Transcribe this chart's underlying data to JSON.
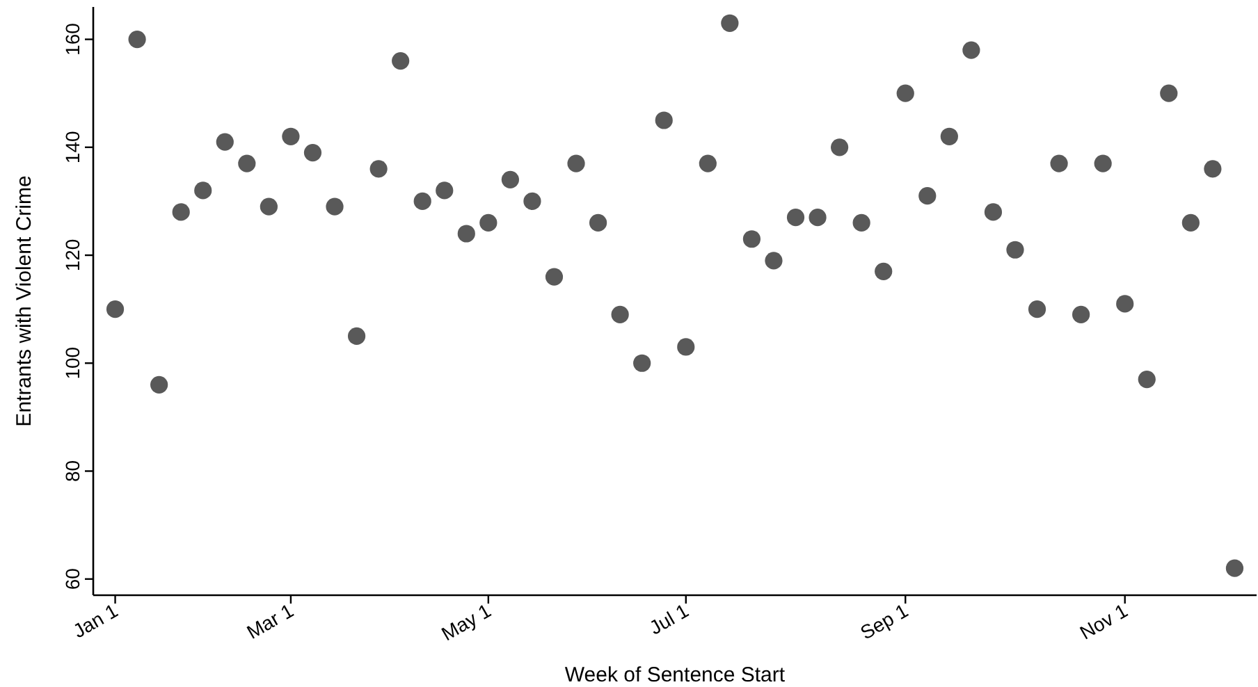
{
  "chart_data": {
    "type": "scatter",
    "xlabel": "Week of Sentence Start",
    "ylabel": "Entrants with Violent Crime",
    "categories": [
      "Jan 1",
      null,
      null,
      null,
      null,
      null,
      null,
      null,
      "Mar 1",
      null,
      null,
      null,
      null,
      null,
      null,
      null,
      null,
      "May 1",
      null,
      null,
      null,
      null,
      null,
      null,
      null,
      null,
      "Jul 1",
      null,
      null,
      null,
      null,
      null,
      null,
      null,
      null,
      null,
      "Sep 1",
      null,
      null,
      null,
      null,
      null,
      null,
      null,
      null,
      null,
      "Nov 1",
      null,
      null,
      null,
      null,
      null
    ],
    "series": [
      {
        "color": "#595959",
        "values": [
          110,
          160,
          96,
          128,
          132,
          141,
          137,
          129,
          142,
          139,
          129,
          105,
          136,
          156,
          130,
          132,
          124,
          126,
          134,
          130,
          116,
          137,
          126,
          109,
          100,
          145,
          103,
          137,
          163,
          123,
          119,
          127,
          127,
          140,
          126,
          117,
          150,
          131,
          142,
          158,
          128,
          121,
          110,
          137,
          109,
          137,
          111,
          97,
          150,
          126,
          136,
          62
        ]
      }
    ],
    "ylim": [
      57,
      166
    ],
    "yticks": [
      60,
      80,
      100,
      120,
      140,
      160
    ],
    "marker": "circle",
    "grid": false
  }
}
